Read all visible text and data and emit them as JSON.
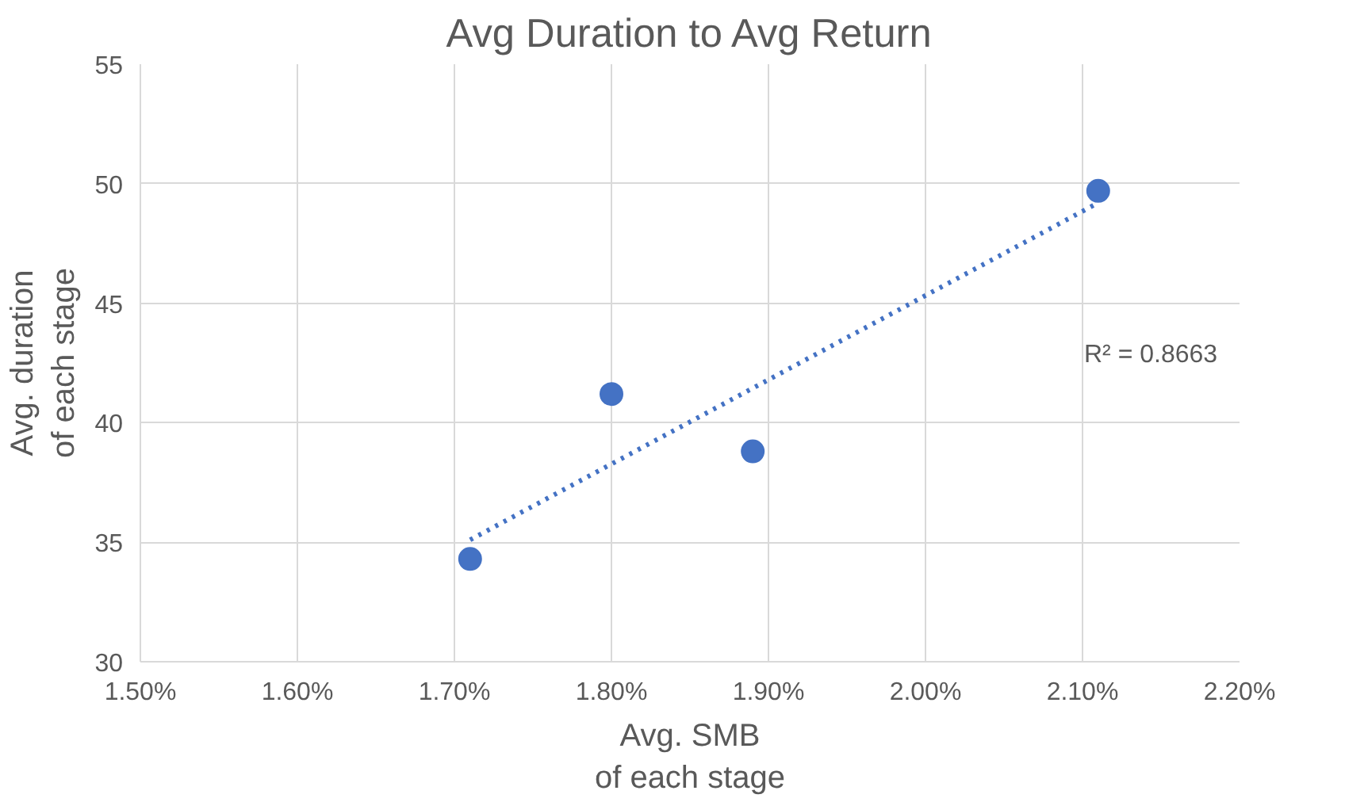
{
  "chart_data": {
    "type": "scatter",
    "title": "Avg Duration to Avg Return",
    "xlabel": "Avg. SMB\nof each stage",
    "ylabel": "Avg. duration\nof each stage",
    "x": [
      1.71,
      1.8,
      1.89,
      2.11
    ],
    "series": [
      {
        "color": "#4472c4",
        "values": [
          34.3,
          41.2,
          38.8,
          49.7
        ],
        "marker": "circle"
      },
      {
        "type": "line",
        "color": "#4472c4",
        "x": [
          1.71,
          2.11
        ],
        "values": [
          35.1,
          49.2
        ],
        "line_style": "dotted",
        "marker": "none"
      }
    ],
    "annotations": [
      "R² = 0.8663"
    ],
    "xlim": [
      1.5,
      2.2
    ],
    "xticks": [
      {
        "value": 1.5,
        "label": "1.50%"
      },
      {
        "value": 1.6,
        "label": "1.60%"
      },
      {
        "value": 1.7,
        "label": "1.70%"
      },
      {
        "value": 1.8,
        "label": "1.80%"
      },
      {
        "value": 1.9,
        "label": "1.90%"
      },
      {
        "value": 2.0,
        "label": "2.00%"
      },
      {
        "value": 2.1,
        "label": "2.10%"
      },
      {
        "value": 2.2,
        "label": "2.20%"
      }
    ],
    "ylim": [
      30,
      55
    ],
    "yticks": [
      30,
      35,
      40,
      45,
      50,
      55
    ],
    "grid": true
  }
}
